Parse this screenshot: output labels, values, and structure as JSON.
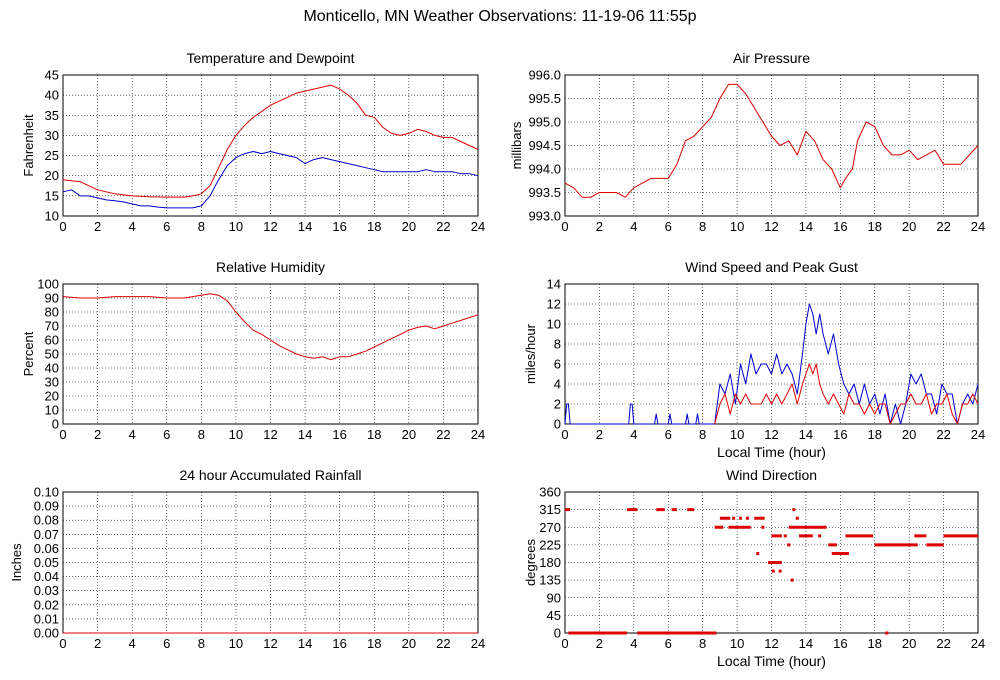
{
  "page_title": "Monticello, MN Weather Observations: 11-19-06 11:55p",
  "colors": {
    "temperature": "#dd0000",
    "dewpoint": "#0000cc",
    "grid": "#000000",
    "series_red": "#dd0000",
    "series_blue": "#0000cc"
  },
  "chart_data": [
    {
      "id": "temp",
      "type": "line",
      "title": "Temperature and Dewpoint",
      "xlabel": "",
      "ylabel": "Fahrenheit",
      "xlim": [
        0,
        24
      ],
      "ylim": [
        10,
        45
      ],
      "xticks": [
        0,
        2,
        4,
        6,
        8,
        10,
        12,
        14,
        16,
        18,
        20,
        22,
        24
      ],
      "yticks": [
        10,
        15,
        20,
        25,
        30,
        35,
        40,
        45
      ],
      "yticklabels": [
        "10",
        "15",
        "20",
        "25",
        "30",
        "35",
        "40",
        "45"
      ],
      "grid": true,
      "series": [
        {
          "color": "#dd0000",
          "x": [
            0,
            1,
            2,
            3,
            4,
            5,
            6,
            7,
            7.5,
            8,
            8.5,
            9,
            9.5,
            10,
            10.5,
            11,
            11.5,
            12,
            12.5,
            13,
            13.5,
            14,
            14.5,
            15,
            15.5,
            16,
            16.5,
            17,
            17.5,
            18,
            18.5,
            19,
            19.5,
            20,
            20.5,
            21,
            21.5,
            22,
            22.5,
            23,
            23.5,
            24
          ],
          "y": [
            19,
            18.5,
            16.5,
            15.5,
            15,
            14.8,
            14.7,
            14.7,
            15,
            15.5,
            17.5,
            22,
            26.5,
            30,
            32.5,
            34.5,
            36,
            37.5,
            38.5,
            39.5,
            40.5,
            41,
            41.5,
            42,
            42.5,
            41.5,
            40,
            38,
            35,
            34.5,
            32,
            30.5,
            30,
            30.5,
            31.5,
            31,
            30,
            29.5,
            29.5,
            28.5,
            27.5,
            26.5
          ]
        },
        {
          "color": "#0000cc",
          "x": [
            0,
            0.5,
            1,
            1.5,
            2,
            2.5,
            3,
            3.5,
            4,
            4.5,
            5,
            5.5,
            6,
            6.5,
            7,
            7.5,
            8,
            8.5,
            9,
            9.5,
            10,
            10.5,
            11,
            11.5,
            12,
            12.5,
            13,
            13.5,
            14,
            14.5,
            15,
            15.5,
            16,
            16.5,
            17,
            17.5,
            18,
            18.5,
            19,
            19.5,
            20,
            20.5,
            21,
            21.5,
            22,
            22.5,
            23,
            23.5,
            24
          ],
          "y": [
            16,
            16.5,
            15,
            15,
            14.5,
            14,
            13.8,
            13.5,
            13,
            12.5,
            12.5,
            12.2,
            12,
            12,
            12,
            12,
            12.5,
            15,
            19,
            22.5,
            24.5,
            25.5,
            26,
            25.5,
            26,
            25.5,
            25,
            24.5,
            23,
            24,
            24.5,
            24,
            23.5,
            23,
            22.5,
            22,
            21.5,
            21,
            21,
            21,
            21,
            21,
            21.5,
            21,
            21,
            21,
            20.5,
            20.5,
            20
          ]
        }
      ]
    },
    {
      "id": "pressure",
      "type": "line",
      "title": "Air Pressure",
      "xlabel": "",
      "ylabel": "millibars",
      "xlim": [
        0,
        24
      ],
      "ylim": [
        993.0,
        996.0
      ],
      "xticks": [
        0,
        2,
        4,
        6,
        8,
        10,
        12,
        14,
        16,
        18,
        20,
        22,
        24
      ],
      "yticks": [
        993.0,
        993.5,
        994.0,
        994.5,
        995.0,
        995.5,
        996.0
      ],
      "yticklabels": [
        "993.0",
        "993.5",
        "994.0",
        "994.5",
        "995.0",
        "995.5",
        "996.0"
      ],
      "grid": true,
      "series": [
        {
          "color": "#dd0000",
          "x": [
            0,
            0.5,
            1,
            1.5,
            2,
            2.5,
            3,
            3.5,
            4,
            4.5,
            5,
            5.5,
            6,
            6.5,
            7,
            7.5,
            8,
            8.5,
            9,
            9.5,
            10,
            10.5,
            11,
            11.5,
            12,
            12.5,
            13,
            13.5,
            14,
            14.5,
            15,
            15.5,
            16,
            16.3,
            16.7,
            17,
            17.5,
            18,
            18.5,
            19,
            19.5,
            20,
            20.5,
            21,
            21.5,
            22,
            22.5,
            23,
            23.5,
            24
          ],
          "y": [
            993.7,
            993.6,
            993.4,
            993.4,
            993.5,
            993.5,
            993.5,
            993.4,
            993.6,
            993.7,
            993.8,
            993.8,
            993.8,
            994.1,
            994.6,
            994.7,
            994.9,
            995.1,
            995.5,
            995.8,
            995.8,
            995.6,
            995.3,
            995.0,
            994.7,
            994.5,
            994.6,
            994.3,
            994.8,
            994.6,
            994.2,
            994.0,
            993.6,
            993.8,
            994.0,
            994.6,
            995.0,
            994.9,
            994.5,
            994.3,
            994.3,
            994.4,
            994.2,
            994.3,
            994.4,
            994.1,
            994.1,
            994.1,
            994.3,
            994.5
          ]
        }
      ]
    },
    {
      "id": "humidity",
      "type": "line",
      "title": "Relative Humidity",
      "xlabel": "",
      "ylabel": "Percent",
      "xlim": [
        0,
        24
      ],
      "ylim": [
        0,
        100
      ],
      "xticks": [
        0,
        2,
        4,
        6,
        8,
        10,
        12,
        14,
        16,
        18,
        20,
        22,
        24
      ],
      "yticks": [
        0,
        10,
        20,
        30,
        40,
        50,
        60,
        70,
        80,
        90,
        100
      ],
      "yticklabels": [
        "0",
        "10",
        "20",
        "30",
        "40",
        "50",
        "60",
        "70",
        "80",
        "90",
        "100"
      ],
      "grid": true,
      "series": [
        {
          "color": "#dd0000",
          "x": [
            0,
            1,
            2,
            3,
            4,
            5,
            6,
            7,
            7.5,
            8,
            8.5,
            9,
            9.5,
            10,
            10.5,
            11,
            11.5,
            12,
            12.5,
            13,
            13.5,
            14,
            14.5,
            15,
            15.5,
            16,
            16.5,
            17,
            17.5,
            18,
            18.5,
            19,
            19.5,
            20,
            20.5,
            21,
            21.5,
            22,
            22.5,
            23,
            23.5,
            24
          ],
          "y": [
            91,
            90,
            90,
            91,
            91,
            91,
            90,
            90,
            91,
            92,
            93,
            92,
            88,
            80,
            73,
            67,
            64,
            60,
            56,
            53,
            50,
            48,
            47,
            48,
            46,
            48,
            48,
            50,
            52,
            55,
            58,
            61,
            64,
            67,
            69,
            70,
            68,
            70,
            72,
            74,
            76,
            78
          ]
        }
      ]
    },
    {
      "id": "wind",
      "type": "line",
      "title": "Wind Speed and Peak Gust",
      "xlabel": "Local Time (hour)",
      "ylabel": "miles/hour",
      "xlim": [
        0,
        24
      ],
      "ylim": [
        0,
        14
      ],
      "xticks": [
        0,
        2,
        4,
        6,
        8,
        10,
        12,
        14,
        16,
        18,
        20,
        22,
        24
      ],
      "yticks": [
        0,
        2,
        4,
        6,
        8,
        10,
        12,
        14
      ],
      "yticklabels": [
        "0",
        "2",
        "4",
        "6",
        "8",
        "10",
        "12",
        "14"
      ],
      "grid": true,
      "series": [
        {
          "color": "#0000cc",
          "x": [
            0,
            0.1,
            0.2,
            0.3,
            3.7,
            3.8,
            3.9,
            4.0,
            5.2,
            5.3,
            5.4,
            6.0,
            6.1,
            6.2,
            7.0,
            7.1,
            7.2,
            7.6,
            7.7,
            7.8,
            8.7,
            9.0,
            9.3,
            9.6,
            9.9,
            10.2,
            10.5,
            10.8,
            11.1,
            11.4,
            11.7,
            12.0,
            12.3,
            12.6,
            12.9,
            13.2,
            13.5,
            13.8,
            14.0,
            14.2,
            14.4,
            14.6,
            14.8,
            15.0,
            15.3,
            15.6,
            15.9,
            16.2,
            16.5,
            16.8,
            17.1,
            17.4,
            17.7,
            18.0,
            18.3,
            18.6,
            18.9,
            19.2,
            19.5,
            19.8,
            20.1,
            20.4,
            20.7,
            21.0,
            21.3,
            21.6,
            21.9,
            22.2,
            22.5,
            22.8,
            23.1,
            23.4,
            23.7,
            24
          ],
          "y": [
            0,
            2,
            2,
            0,
            0,
            2,
            2,
            0,
            0,
            1,
            0,
            0,
            1,
            0,
            0,
            1,
            0,
            0,
            1,
            0,
            0,
            4,
            3,
            5,
            2,
            6,
            4,
            7,
            5,
            6,
            6,
            5,
            7,
            5,
            6,
            5,
            3,
            7,
            10,
            12,
            11,
            9,
            11,
            9,
            7,
            9,
            6,
            4,
            3,
            4,
            2,
            4,
            2,
            3,
            1,
            3,
            0,
            2,
            0,
            2,
            5,
            4,
            5,
            3,
            3,
            1,
            4,
            3,
            3,
            0,
            2,
            3,
            2,
            4
          ]
        },
        {
          "color": "#dd0000",
          "x": [
            8.7,
            9.0,
            9.3,
            9.6,
            9.9,
            10.2,
            10.5,
            10.8,
            11.1,
            11.4,
            11.7,
            12.0,
            12.3,
            12.6,
            12.9,
            13.2,
            13.5,
            13.8,
            14.0,
            14.2,
            14.4,
            14.6,
            14.8,
            15.0,
            15.3,
            15.6,
            15.9,
            16.2,
            16.5,
            16.8,
            17.1,
            17.4,
            17.7,
            18.0,
            18.3,
            18.6,
            18.9,
            19.2,
            19.5,
            19.8,
            20.1,
            20.4,
            20.7,
            21.0,
            21.3,
            21.6,
            21.9,
            22.2,
            22.5,
            22.8,
            23.1,
            23.4,
            23.7,
            24
          ],
          "y": [
            0,
            2,
            3,
            1,
            3,
            2,
            3,
            2,
            2,
            2,
            3,
            2,
            3,
            2,
            3,
            4,
            2,
            4,
            5,
            6,
            5,
            6,
            4,
            3,
            2,
            3,
            2,
            1,
            3,
            2,
            2,
            1,
            2,
            1,
            2,
            2,
            0,
            1,
            2,
            2,
            3,
            2,
            2,
            3,
            1,
            2,
            2,
            3,
            1,
            0,
            2,
            2,
            3,
            2
          ]
        }
      ]
    },
    {
      "id": "rain",
      "type": "line",
      "title": "24 hour Accumulated Rainfall",
      "xlabel": "",
      "ylabel": "Inches",
      "xlim": [
        0,
        24
      ],
      "ylim": [
        0,
        0.1
      ],
      "xticks": [
        0,
        2,
        4,
        6,
        8,
        10,
        12,
        14,
        16,
        18,
        20,
        22,
        24
      ],
      "yticks": [
        0,
        0.01,
        0.02,
        0.03,
        0.04,
        0.05,
        0.06,
        0.07,
        0.08,
        0.09,
        0.1
      ],
      "yticklabels": [
        "0.00",
        "0.01",
        "0.02",
        "0.03",
        "0.04",
        "0.05",
        "0.06",
        "0.07",
        "0.08",
        "0.09",
        "0.10"
      ],
      "grid": true,
      "series": [
        {
          "color": "#dd0000",
          "x": [
            0,
            24
          ],
          "y": [
            0,
            0
          ]
        }
      ]
    },
    {
      "id": "winddir",
      "type": "scatter",
      "title": "Wind Direction",
      "xlabel": "Local Time (hour)",
      "ylabel": "degrees",
      "xlim": [
        0,
        24
      ],
      "ylim": [
        0,
        360
      ],
      "xticks": [
        0,
        2,
        4,
        6,
        8,
        10,
        12,
        14,
        16,
        18,
        20,
        22,
        24
      ],
      "yticks": [
        0,
        45,
        90,
        135,
        180,
        225,
        270,
        315,
        360
      ],
      "yticklabels": [
        "0",
        "45",
        "90",
        "135",
        "180",
        "225",
        "270",
        "315",
        "360"
      ],
      "grid": true,
      "segments": [
        {
          "color": "#dd0000",
          "x0": 0.0,
          "x1": 0.3,
          "y": 315
        },
        {
          "color": "#dd0000",
          "x0": 0.2,
          "x1": 3.6,
          "y": 0
        },
        {
          "color": "#dd0000",
          "x0": 3.6,
          "x1": 4.2,
          "y": 315
        },
        {
          "color": "#dd0000",
          "x0": 4.2,
          "x1": 8.8,
          "y": 0
        },
        {
          "color": "#dd0000",
          "x0": 5.3,
          "x1": 5.8,
          "y": 315
        },
        {
          "color": "#dd0000",
          "x0": 6.2,
          "x1": 6.5,
          "y": 315
        },
        {
          "color": "#dd0000",
          "x0": 7.1,
          "x1": 7.5,
          "y": 315
        },
        {
          "color": "#dd0000",
          "x0": 8.7,
          "x1": 9.2,
          "y": 270
        },
        {
          "color": "#dd0000",
          "x0": 9.0,
          "x1": 9.6,
          "y": 293
        },
        {
          "color": "#dd0000",
          "x0": 9.5,
          "x1": 10.8,
          "y": 270
        },
        {
          "color": "#dd0000",
          "x0": 11.0,
          "x1": 11.6,
          "y": 293
        },
        {
          "color": "#dd0000",
          "x0": 11.8,
          "x1": 12.6,
          "y": 180
        },
        {
          "color": "#dd0000",
          "x0": 12.0,
          "x1": 12.6,
          "y": 248
        },
        {
          "color": "#dd0000",
          "x0": 13.0,
          "x1": 15.2,
          "y": 270
        },
        {
          "color": "#dd0000",
          "x0": 13.6,
          "x1": 14.4,
          "y": 248
        },
        {
          "color": "#dd0000",
          "x0": 15.3,
          "x1": 15.8,
          "y": 225
        },
        {
          "color": "#dd0000",
          "x0": 15.5,
          "x1": 16.5,
          "y": 203
        },
        {
          "color": "#dd0000",
          "x0": 16.3,
          "x1": 17.9,
          "y": 248
        },
        {
          "color": "#dd0000",
          "x0": 18.0,
          "x1": 18.8,
          "y": 225
        },
        {
          "color": "#dd0000",
          "x0": 18.8,
          "x1": 20.5,
          "y": 225
        },
        {
          "color": "#dd0000",
          "x0": 20.3,
          "x1": 21.0,
          "y": 248
        },
        {
          "color": "#dd0000",
          "x0": 21.0,
          "x1": 22.0,
          "y": 225
        },
        {
          "color": "#dd0000",
          "x0": 22.0,
          "x1": 24.0,
          "y": 248
        }
      ],
      "points": {
        "color": "#dd0000",
        "x": [
          9.8,
          10.2,
          10.6,
          11.2,
          11.5,
          12.1,
          12.3,
          12.5,
          12.8,
          13.0,
          13.2,
          13.3,
          13.5,
          14.8,
          15.9,
          18.7
        ],
        "y": [
          293,
          293,
          293,
          203,
          270,
          158,
          180,
          158,
          248,
          225,
          135,
          315,
          293,
          248,
          203,
          0
        ]
      }
    }
  ]
}
